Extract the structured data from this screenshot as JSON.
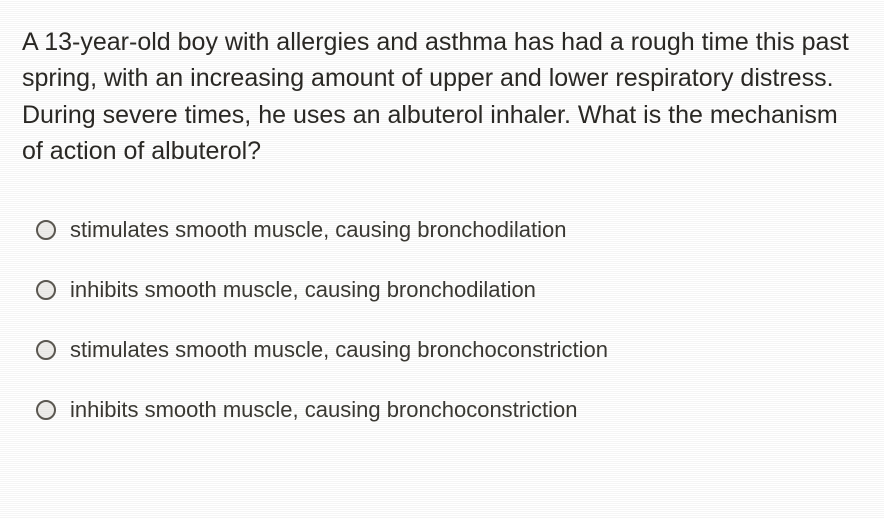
{
  "question": {
    "text": "A 13-year-old boy with allergies and asthma has had a rough time this past spring, with an increasing amount of upper and lower respiratory distress.  During severe times, he uses an albuterol inhaler.  What is the mechanism of action of albuterol?"
  },
  "options": [
    {
      "label": "stimulates smooth muscle, causing bronchodilation"
    },
    {
      "label": "inhibits smooth muscle, causing bronchodilation"
    },
    {
      "label": "stimulates smooth muscle, causing bronchoconstriction"
    },
    {
      "label": "inhibits smooth muscle, causing bronchoconstriction"
    }
  ],
  "styling": {
    "background_color": "#c5c1b5",
    "text_color": "#2a2824",
    "option_text_color": "#3a3832",
    "radio_border_color": "#5a5750",
    "question_fontsize": 25,
    "option_fontsize": 22
  }
}
